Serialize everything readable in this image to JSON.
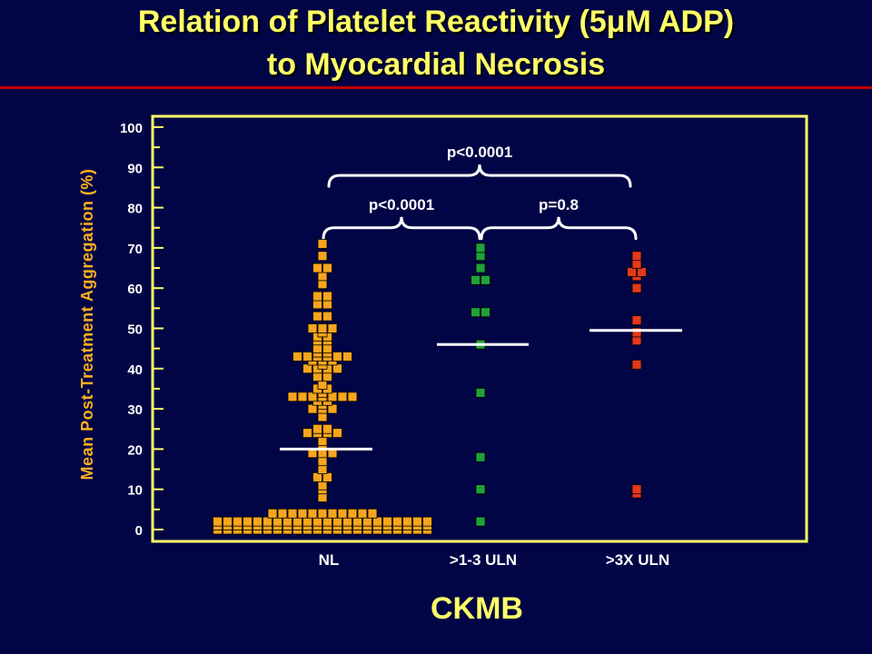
{
  "slide": {
    "title_line1": "Relation of Platelet Reactivity (5μM ADP)",
    "title_line2": "to Myocardial Necrosis"
  },
  "colors": {
    "background": "#010445",
    "title": "#FFFF66",
    "rule": "#C00000",
    "axis": "#FFFF66",
    "ylabel": "#FFB020",
    "text": "#FFFFFF",
    "nl": "#F7A51E",
    "mid": "#1FA23A",
    "high": "#E23A1A",
    "marker_outline": "#000000"
  },
  "chart_data": {
    "type": "scatter",
    "xlabel": "CKMB",
    "ylabel": "Mean Post-Treatment Aggregation (%)",
    "ylim": [
      0,
      100
    ],
    "yticks": [
      "0",
      "10",
      "20",
      "30",
      "40",
      "50",
      "60",
      "70",
      "80",
      "90",
      "100"
    ],
    "grid": false,
    "categories": [
      "NL",
      ">1-3 ULN",
      ">3X ULN"
    ],
    "series": [
      {
        "category": "NL",
        "color": "#F7A51E",
        "mean": 20,
        "values": [
          0,
          0,
          0,
          0,
          0,
          0,
          0,
          0,
          0,
          0,
          0,
          0,
          0,
          0,
          0,
          0,
          0,
          0,
          0,
          0,
          0,
          0,
          1,
          1,
          1,
          1,
          1,
          1,
          1,
          1,
          1,
          1,
          1,
          1,
          1,
          1,
          1,
          1,
          1,
          1,
          1,
          1,
          1,
          1,
          2,
          2,
          2,
          2,
          2,
          2,
          2,
          2,
          2,
          2,
          2,
          2,
          2,
          2,
          2,
          2,
          2,
          2,
          2,
          2,
          2,
          2,
          4,
          4,
          4,
          4,
          4,
          4,
          4,
          4,
          4,
          4,
          4,
          8,
          10,
          11,
          13,
          13,
          15,
          17,
          19,
          19,
          19,
          21,
          22,
          24,
          24,
          24,
          24,
          25,
          25,
          28,
          30,
          30,
          30,
          31,
          32,
          32,
          33,
          33,
          33,
          33,
          33,
          33,
          33,
          34,
          35,
          35,
          36,
          38,
          38,
          40,
          40,
          40,
          40,
          41,
          42,
          42,
          42,
          43,
          43,
          43,
          43,
          43,
          43,
          44,
          44,
          45,
          45,
          47,
          47,
          48,
          48,
          49,
          50,
          50,
          50,
          53,
          53,
          56,
          56,
          58,
          58,
          61,
          63,
          65,
          65,
          68,
          71
        ]
      },
      {
        "category": ">1-3 ULN",
        "color": "#1FA23A",
        "mean": 46,
        "values": [
          2,
          10,
          18,
          34,
          46,
          54,
          54,
          62,
          62,
          65,
          68,
          70
        ]
      },
      {
        "category": ">3X ULN",
        "color": "#E23A1A",
        "mean": 49.5,
        "values": [
          9,
          10,
          41,
          47,
          49,
          52,
          60,
          63,
          64,
          64,
          66,
          68
        ]
      }
    ],
    "annotations": [
      {
        "label": "p<0.0001",
        "from": "NL",
        "to": ">3X ULN",
        "y": 88,
        "tier": "upper"
      },
      {
        "label": "p<0.0001",
        "from": "NL",
        "to": ">1-3 ULN",
        "y": 75,
        "tier": "lower"
      },
      {
        "label": "p=0.8",
        "from": ">1-3 ULN",
        "to": ">3X ULN",
        "y": 75,
        "tier": "lower"
      }
    ]
  }
}
